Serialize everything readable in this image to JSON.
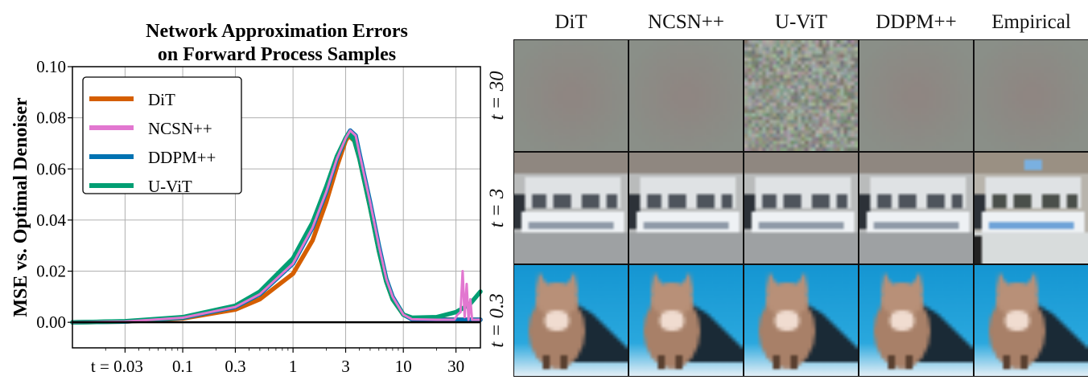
{
  "chart_data": {
    "type": "line",
    "title": [
      "Network Approximation Errors",
      "on Forward Process Samples"
    ],
    "ylabel": "MSE vs. Optimal Denoiser",
    "xlabel": "",
    "xscale": "log",
    "xlim": [
      0.01,
      50
    ],
    "ylim": [
      -0.01,
      0.1
    ],
    "grid": true,
    "legend_position": "top-left",
    "xticks": [
      0.03,
      0.1,
      0.3,
      1,
      3,
      10,
      30
    ],
    "xtick_labels": [
      "t = 0.03",
      "0.1",
      "0.3",
      "1",
      "3",
      "10",
      "30"
    ],
    "yticks": [
      0.0,
      0.02,
      0.04,
      0.06,
      0.08,
      0.1
    ],
    "ytick_labels": [
      "0.00",
      "0.02",
      "0.04",
      "0.06",
      "0.08",
      "0.10"
    ],
    "hline": 0.0,
    "series": [
      {
        "name": "DiT",
        "color": "#d55e00",
        "x": [
          0.01,
          0.03,
          0.1,
          0.3,
          0.5,
          1,
          1.5,
          2,
          2.5,
          3,
          3.2,
          3.6,
          4,
          5,
          6,
          7,
          8,
          10,
          12,
          20,
          30,
          50
        ],
        "y": [
          0.0,
          0.0003,
          0.0015,
          0.005,
          0.009,
          0.019,
          0.032,
          0.047,
          0.061,
          0.071,
          0.073,
          0.071,
          0.064,
          0.045,
          0.028,
          0.016,
          0.009,
          0.003,
          0.0015,
          0.0012,
          0.001,
          0.001
        ]
      },
      {
        "name": "NCSN++",
        "color": "#e277d0",
        "x": [
          0.01,
          0.03,
          0.1,
          0.3,
          0.5,
          1,
          1.5,
          2,
          2.5,
          3,
          3.3,
          3.7,
          4,
          5,
          6,
          7,
          8,
          10,
          12,
          20,
          29,
          31,
          33,
          34.5,
          36,
          37.5,
          39,
          40.5,
          42,
          50
        ],
        "y": [
          0.0,
          0.0003,
          0.0018,
          0.006,
          0.011,
          0.023,
          0.037,
          0.051,
          0.064,
          0.072,
          0.075,
          0.073,
          0.066,
          0.047,
          0.03,
          0.017,
          0.01,
          0.003,
          0.0012,
          0.001,
          0.001,
          0.003,
          0.004,
          0.02,
          0.002,
          0.015,
          0.001,
          0.009,
          0.001,
          0.001
        ]
      },
      {
        "name": "DDPM++",
        "color": "#0072b2",
        "x": [
          0.01,
          0.03,
          0.1,
          0.3,
          0.5,
          1,
          1.5,
          2,
          2.5,
          3,
          3.3,
          3.7,
          4,
          5,
          6,
          7,
          8,
          10,
          12,
          20,
          30,
          50
        ],
        "y": [
          0.0,
          0.0003,
          0.0018,
          0.006,
          0.011,
          0.023,
          0.037,
          0.051,
          0.064,
          0.072,
          0.075,
          0.073,
          0.066,
          0.047,
          0.03,
          0.017,
          0.01,
          0.003,
          0.0012,
          0.001,
          0.001,
          0.001
        ]
      },
      {
        "name": "U-ViT",
        "color": "#009e73",
        "x": [
          0.01,
          0.03,
          0.1,
          0.3,
          0.5,
          1,
          1.5,
          2,
          2.5,
          3,
          3.2,
          3.6,
          4,
          5,
          6,
          7,
          8,
          10,
          12,
          20,
          30,
          40,
          50
        ],
        "y": [
          0.0,
          0.0004,
          0.002,
          0.0065,
          0.012,
          0.025,
          0.039,
          0.053,
          0.065,
          0.072,
          0.074,
          0.071,
          0.064,
          0.045,
          0.028,
          0.016,
          0.009,
          0.003,
          0.0018,
          0.002,
          0.004,
          0.007,
          0.012
        ]
      }
    ]
  },
  "image_grid": {
    "columns": [
      "DiT",
      "NCSN++",
      "U-ViT",
      "DDPM++",
      "Empirical"
    ],
    "rows": [
      "t = 30",
      "t = 3",
      "t = 0.3"
    ]
  }
}
